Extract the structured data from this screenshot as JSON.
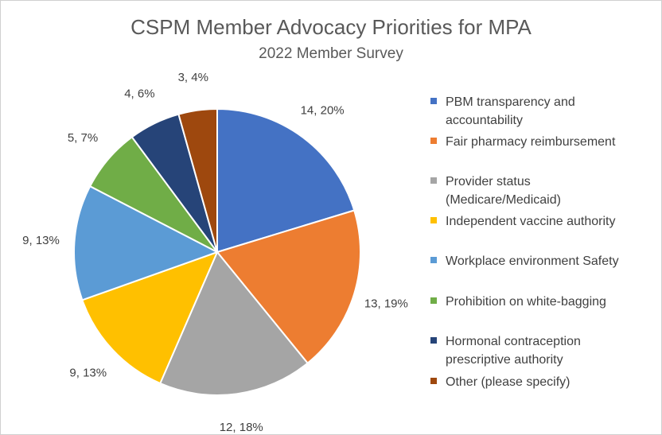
{
  "chart_data": {
    "type": "pie",
    "title": "CSPM Member Advocacy Priorities for MPA",
    "subtitle": "2022 Member Survey",
    "categories": [
      "PBM transparency and\naccountability",
      "Fair pharmacy reimbursement",
      "Provider status\n(Medicare/Medicaid)",
      "Independent vaccine authority",
      "Workplace environment Safety",
      "Prohibition on white-bagging",
      "Hormonal contraception\nprescriptive authority",
      "Other (please specify)"
    ],
    "values": [
      14,
      13,
      12,
      9,
      9,
      5,
      4,
      3
    ],
    "data_labels": [
      "14, 20%",
      "13, 19%",
      "12, 18%",
      "9, 13%",
      "9, 13%",
      "5, 7%",
      "4, 6%",
      "3, 4%"
    ],
    "colors": [
      "#4472C4",
      "#ED7D31",
      "#A5A5A5",
      "#FFC000",
      "#5B9BD5",
      "#70AD47",
      "#264478",
      "#9E480E"
    ],
    "legend_position": "right"
  }
}
